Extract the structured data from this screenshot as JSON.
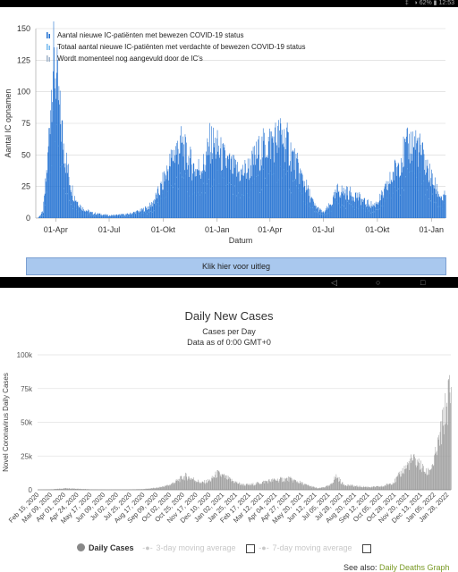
{
  "status_bar": {
    "text": "‡   ◑ 62% ▮ 12:53"
  },
  "uitleg_button": "Klik hier voor uitleg",
  "chart_data": [
    {
      "type": "bar",
      "title": "",
      "xlabel": "Datum",
      "ylabel": "Aantal IC opnamen",
      "ylim": [
        0,
        150
      ],
      "yticks": [
        0,
        25,
        50,
        75,
        100,
        125,
        150
      ],
      "x_range": [
        "2020-02-27",
        "2022-01-25"
      ],
      "xticks": [
        {
          "date": "2020-04-01",
          "label": "01-Apr"
        },
        {
          "date": "2020-07-01",
          "label": "01-Jul"
        },
        {
          "date": "2020-10-01",
          "label": "01-Okt"
        },
        {
          "date": "2021-01-01",
          "label": "01-Jan"
        },
        {
          "date": "2021-04-01",
          "label": "01-Apr"
        },
        {
          "date": "2021-07-01",
          "label": "01-Jul"
        },
        {
          "date": "2021-10-01",
          "label": "01-Okt"
        },
        {
          "date": "2022-01-01",
          "label": "01-Jan"
        }
      ],
      "grid": true,
      "legend_position": "top-left",
      "series": [
        {
          "name": "Aantal nieuwe IC-patiënten met bewezen COVID-19 status",
          "color": "#1f6fd1"
        },
        {
          "name": "Totaal aantal nieuwe IC-patiënten met verdachte of bewezen COVID-19 status",
          "color": "#74b8ee"
        },
        {
          "name": "Wordt momenteel nog aangevuld door de IC's",
          "color": "#9fb2c8"
        }
      ],
      "points": [
        [
          "2020-03-01",
          0
        ],
        [
          "2020-03-10",
          5
        ],
        [
          "2020-03-18",
          45
        ],
        [
          "2020-03-23",
          95
        ],
        [
          "2020-03-27",
          122
        ],
        [
          "2020-04-01",
          115
        ],
        [
          "2020-04-08",
          80
        ],
        [
          "2020-04-15",
          55
        ],
        [
          "2020-04-22",
          35
        ],
        [
          "2020-05-01",
          18
        ],
        [
          "2020-05-15",
          8
        ],
        [
          "2020-06-01",
          4
        ],
        [
          "2020-07-01",
          2
        ],
        [
          "2020-08-01",
          3
        ],
        [
          "2020-08-25",
          6
        ],
        [
          "2020-09-10",
          10
        ],
        [
          "2020-09-25",
          22
        ],
        [
          "2020-10-10",
          40
        ],
        [
          "2020-10-20",
          52
        ],
        [
          "2020-11-01",
          58
        ],
        [
          "2020-11-10",
          48
        ],
        [
          "2020-11-25",
          38
        ],
        [
          "2020-12-10",
          42
        ],
        [
          "2020-12-20",
          60
        ],
        [
          "2021-01-01",
          55
        ],
        [
          "2021-01-10",
          48
        ],
        [
          "2021-01-25",
          40
        ],
        [
          "2021-02-10",
          35
        ],
        [
          "2021-02-25",
          40
        ],
        [
          "2021-03-10",
          50
        ],
        [
          "2021-03-25",
          58
        ],
        [
          "2021-04-10",
          62
        ],
        [
          "2021-04-20",
          65
        ],
        [
          "2021-05-01",
          58
        ],
        [
          "2021-05-15",
          42
        ],
        [
          "2021-06-01",
          25
        ],
        [
          "2021-06-15",
          10
        ],
        [
          "2021-07-01",
          4
        ],
        [
          "2021-07-15",
          12
        ],
        [
          "2021-07-25",
          22
        ],
        [
          "2021-08-10",
          20
        ],
        [
          "2021-08-25",
          18
        ],
        [
          "2021-09-10",
          12
        ],
        [
          "2021-09-25",
          10
        ],
        [
          "2021-10-10",
          18
        ],
        [
          "2021-10-25",
          32
        ],
        [
          "2021-11-10",
          48
        ],
        [
          "2021-11-25",
          58
        ],
        [
          "2021-12-05",
          60
        ],
        [
          "2021-12-15",
          50
        ],
        [
          "2021-12-28",
          35
        ],
        [
          "2022-01-10",
          22
        ],
        [
          "2022-01-20",
          15
        ],
        [
          "2022-01-25",
          18
        ]
      ]
    },
    {
      "type": "bar",
      "title": "Daily New Cases",
      "subtitle": "Cases per Day",
      "subtitle2": "Data as of 0:00 GMT+0",
      "xlabel": "",
      "ylabel": "Novel Coronavirus Daily Cases",
      "ylim": [
        0,
        100000
      ],
      "yticks": [
        0,
        25000,
        50000,
        75000,
        100000
      ],
      "ytick_labels": [
        "0",
        "25k",
        "50k",
        "75k",
        "100k"
      ],
      "x_range": [
        "2020-02-15",
        "2022-01-31"
      ],
      "xtick_labels": [
        "Feb 15, 2020",
        "Mar 09, 2020",
        "Apr 01, 2020",
        "Apr 24, 2020",
        "May 17, 2020",
        "Jun 09, 2020",
        "Jul 02, 2020",
        "Jul 25, 2020",
        "Aug 17, 2020",
        "Sep 09, 2020",
        "Oct 02, 2020",
        "Oct 25, 2020",
        "Nov 17, 2020",
        "Dec 10, 2020",
        "Jan 02, 2021",
        "Jan 25, 2021",
        "Feb 17, 2021",
        "Mar 12, 2021",
        "Apr 04, 2021",
        "Apr 27, 2021",
        "May 20, 2021",
        "Jun 12, 2021",
        "Jul 05, 2021",
        "Jul 28, 2021",
        "Aug 20, 2021",
        "Sep 12, 2021",
        "Oct 05, 2021",
        "Oct 28, 2021",
        "Nov 20, 2021",
        "Dec 13, 2021",
        "Jan 05, 2022",
        "Jan 28, 2022"
      ],
      "grid": true,
      "legend_position": "bottom",
      "series": [
        {
          "name": "Daily Cases",
          "color": "#999999"
        },
        {
          "name": "3-day moving average",
          "color": "#cfcfcf"
        },
        {
          "name": "7-day moving average",
          "color": "#cfcfcf"
        }
      ],
      "points": [
        [
          "2020-02-15",
          0
        ],
        [
          "2020-03-10",
          300
        ],
        [
          "2020-04-05",
          1200
        ],
        [
          "2020-04-20",
          900
        ],
        [
          "2020-05-15",
          300
        ],
        [
          "2020-06-15",
          100
        ],
        [
          "2020-07-15",
          150
        ],
        [
          "2020-08-15",
          500
        ],
        [
          "2020-09-10",
          1500
        ],
        [
          "2020-09-30",
          3500
        ],
        [
          "2020-10-15",
          7000
        ],
        [
          "2020-10-28",
          10000
        ],
        [
          "2020-11-10",
          8000
        ],
        [
          "2020-11-25",
          5000
        ],
        [
          "2020-12-10",
          7000
        ],
        [
          "2020-12-22",
          12000
        ],
        [
          "2021-01-01",
          10000
        ],
        [
          "2021-01-15",
          7000
        ],
        [
          "2021-02-01",
          4000
        ],
        [
          "2021-02-15",
          3500
        ],
        [
          "2021-03-05",
          5000
        ],
        [
          "2021-03-20",
          6500
        ],
        [
          "2021-04-10",
          7500
        ],
        [
          "2021-04-25",
          8000
        ],
        [
          "2021-05-10",
          6000
        ],
        [
          "2021-05-25",
          3500
        ],
        [
          "2021-06-15",
          1000
        ],
        [
          "2021-07-05",
          3000
        ],
        [
          "2021-07-16",
          10000
        ],
        [
          "2021-07-28",
          4000
        ],
        [
          "2021-08-20",
          2500
        ],
        [
          "2021-09-15",
          2000
        ],
        [
          "2021-10-05",
          2500
        ],
        [
          "2021-10-25",
          6000
        ],
        [
          "2021-11-10",
          15000
        ],
        [
          "2021-11-25",
          22000
        ],
        [
          "2021-12-05",
          20000
        ],
        [
          "2021-12-20",
          12000
        ],
        [
          "2022-01-01",
          20000
        ],
        [
          "2022-01-10",
          35000
        ],
        [
          "2022-01-20",
          55000
        ],
        [
          "2022-01-28",
          72000
        ],
        [
          "2022-01-31",
          65000
        ]
      ]
    }
  ],
  "see_also": {
    "prefix": "See also: ",
    "link": "Daily Deaths Graph"
  }
}
